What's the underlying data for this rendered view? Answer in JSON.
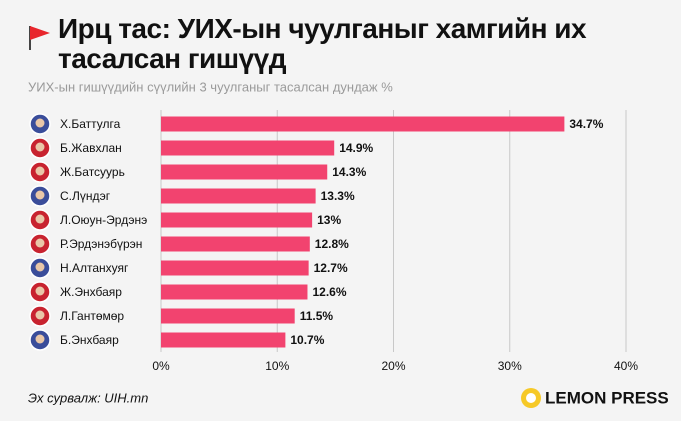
{
  "chart_data": {
    "type": "bar",
    "orientation": "horizontal",
    "title": "Ирц тас: УИХ-ын чуулганыг хамгийн их тасалсан гишүүд",
    "subtitle": "УИХ-ын гишүүдийн сүүлийн 3 чуулганыг тасалсан дундаж %",
    "categories": [
      "Х.Баттулга",
      "Б.Жавхлан",
      "Ж.Батсуурь",
      "С.Лүндэг",
      "Л.Оюун-Эрдэнэ",
      "Р.Эрдэнэбүрэн",
      "Н.Алтанхуяг",
      "Ж.Энхбаяр",
      "Л.Гантөмөр",
      "Б.Энхбаяр"
    ],
    "values": [
      34.7,
      14.9,
      14.3,
      13.3,
      13,
      12.8,
      12.7,
      12.6,
      11.5,
      10.7
    ],
    "value_labels": [
      "34.7%",
      "14.9%",
      "14.3%",
      "13.3%",
      "13%",
      "12.8%",
      "12.7%",
      "12.6%",
      "11.5%",
      "10.7%"
    ],
    "color": "#f2436f",
    "xlim": [
      0,
      40
    ],
    "xticks": [
      {
        "value": 0,
        "label": "0%"
      },
      {
        "value": 10,
        "label": "10%"
      },
      {
        "value": 20,
        "label": "20%"
      },
      {
        "value": 30,
        "label": "30%"
      },
      {
        "value": 40,
        "label": "40%"
      }
    ],
    "grid": true
  },
  "source": "Эх сурвалж: UIH.mn",
  "brand": "LEMON PRESS"
}
